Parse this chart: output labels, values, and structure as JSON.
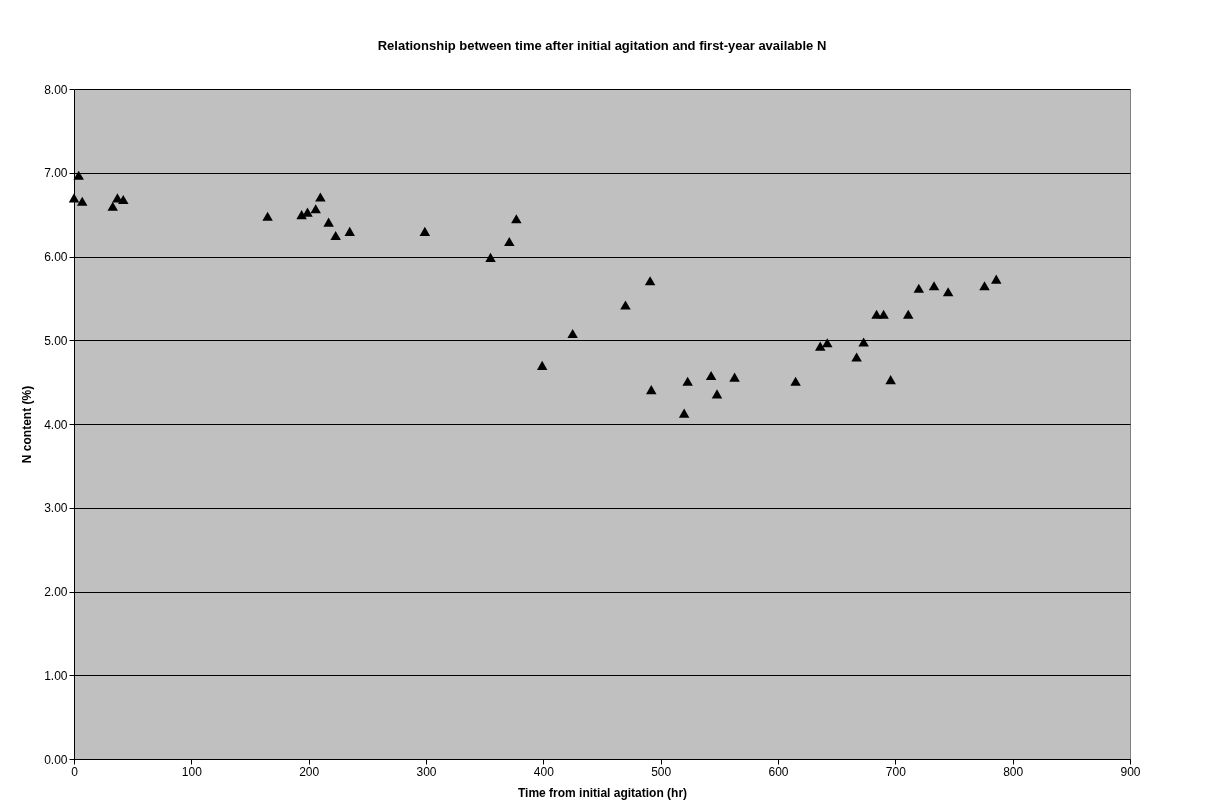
{
  "chart_data": {
    "type": "scatter",
    "title": "Relationship between time after initial agitation and first-year available N",
    "xlabel": "Time from initial agitation (hr)",
    "ylabel": "N content (%)",
    "x": [
      0,
      4,
      7,
      33,
      37,
      42,
      165,
      194,
      199,
      206,
      210,
      217,
      223,
      235,
      299,
      355,
      371,
      377,
      399,
      425,
      470,
      491,
      492,
      520,
      523,
      543,
      548,
      563,
      615,
      636,
      642,
      667,
      673,
      684,
      690,
      696,
      711,
      720,
      733,
      745,
      776,
      786
    ],
    "values": [
      6.7,
      6.97,
      6.66,
      6.6,
      6.7,
      6.68,
      6.48,
      6.5,
      6.53,
      6.57,
      6.71,
      6.41,
      6.25,
      6.3,
      6.3,
      5.99,
      6.18,
      6.45,
      4.7,
      5.08,
      5.42,
      5.71,
      4.41,
      4.13,
      4.51,
      4.58,
      4.36,
      4.56,
      4.51,
      4.93,
      4.97,
      4.8,
      4.98,
      5.31,
      5.31,
      4.53,
      5.31,
      5.62,
      5.65,
      5.58,
      5.65,
      5.73
    ],
    "color": "#000000",
    "marker": "triangle",
    "xlim": [
      0,
      900
    ],
    "xticks": [
      0,
      100,
      200,
      300,
      400,
      500,
      600,
      700,
      800,
      900
    ],
    "ylim": [
      0,
      8
    ],
    "yticks": [
      {
        "value": 0,
        "label": "0.00"
      },
      {
        "value": 1,
        "label": "1.00"
      },
      {
        "value": 2,
        "label": "2.00"
      },
      {
        "value": 3,
        "label": "3.00"
      },
      {
        "value": 4,
        "label": "4.00"
      },
      {
        "value": 5,
        "label": "5.00"
      },
      {
        "value": 6,
        "label": "6.00"
      },
      {
        "value": 7,
        "label": "7.00"
      },
      {
        "value": 8,
        "label": "8.00"
      }
    ],
    "grid": "y"
  }
}
